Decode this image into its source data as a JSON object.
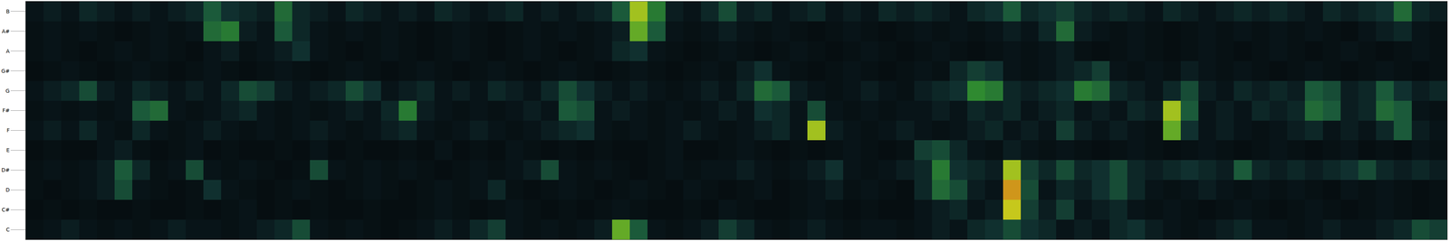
{
  "chart_data": {
    "type": "heatmap",
    "categories": [
      "C",
      "C#",
      "D",
      "D#",
      "E",
      "F",
      "F#",
      "G",
      "G#",
      "A",
      "A#",
      "B"
    ],
    "tick_labels": "y",
    "zlim": [
      0,
      1
    ],
    "cells": [
      [
        0.15,
        0.2,
        0.25,
        0.2,
        0.15,
        0.2,
        0.15,
        0.2,
        0.25,
        0.2,
        0.2,
        0.15,
        0.2,
        0.25,
        0.3,
        0.45,
        0.2,
        0.15,
        0.2,
        0.15,
        0.1,
        0.15,
        0.2,
        0.25,
        0.2,
        0.3,
        0.4,
        0.2,
        0.15,
        0.2,
        0.15,
        0.2,
        0.25,
        0.75,
        0.5,
        0.2,
        0.15,
        0.2,
        0.25,
        0.4,
        0.3,
        0.2,
        0.15,
        0.2,
        0.25,
        0.2,
        0.15,
        0.2,
        0.2,
        0.15,
        0.2,
        0.25,
        0.2,
        0.3,
        0.35,
        0.45,
        0.35,
        0.3,
        0.2,
        0.25,
        0.2,
        0.3,
        0.35,
        0.25,
        0.2,
        0.15,
        0.2,
        0.25,
        0.3,
        0.2,
        0.2,
        0.15,
        0.2,
        0.25,
        0.2,
        0.2,
        0.25,
        0.3,
        0.45,
        0.4
      ],
      [
        0.1,
        0.15,
        0.1,
        0.15,
        0.1,
        0.1,
        0.15,
        0.1,
        0.1,
        0.15,
        0.1,
        0.15,
        0.2,
        0.1,
        0.15,
        0.1,
        0.15,
        0.1,
        0.1,
        0.15,
        0.1,
        0.1,
        0.15,
        0.2,
        0.15,
        0.1,
        0.15,
        0.2,
        0.15,
        0.1,
        0.15,
        0.1,
        0.15,
        0.2,
        0.15,
        0.1,
        0.1,
        0.15,
        0.1,
        0.2,
        0.15,
        0.1,
        0.1,
        0.15,
        0.2,
        0.15,
        0.1,
        0.15,
        0.1,
        0.1,
        0.2,
        0.25,
        0.3,
        0.2,
        0.25,
        0.9,
        0.4,
        0.25,
        0.4,
        0.2,
        0.25,
        0.3,
        0.2,
        0.15,
        0.2,
        0.15,
        0.1,
        0.15,
        0.2,
        0.15,
        0.1,
        0.15,
        0.2,
        0.15,
        0.1,
        0.15,
        0.2,
        0.15,
        0.1,
        0.15
      ],
      [
        0.15,
        0.1,
        0.15,
        0.2,
        0.25,
        0.45,
        0.2,
        0.15,
        0.1,
        0.15,
        0.35,
        0.2,
        0.15,
        0.1,
        0.15,
        0.2,
        0.15,
        0.1,
        0.15,
        0.2,
        0.15,
        0.1,
        0.15,
        0.2,
        0.15,
        0.2,
        0.3,
        0.15,
        0.1,
        0.15,
        0.2,
        0.15,
        0.1,
        0.15,
        0.2,
        0.15,
        0.1,
        0.2,
        0.15,
        0.1,
        0.15,
        0.2,
        0.1,
        0.15,
        0.2,
        0.25,
        0.15,
        0.2,
        0.15,
        0.1,
        0.3,
        0.55,
        0.45,
        0.25,
        0.2,
        0.95,
        0.45,
        0.2,
        0.3,
        0.25,
        0.35,
        0.45,
        0.3,
        0.2,
        0.15,
        0.2,
        0.25,
        0.2,
        0.15,
        0.2,
        0.15,
        0.2,
        0.15,
        0.1,
        0.2,
        0.15,
        0.2,
        0.15,
        0.1,
        0.15
      ],
      [
        0.15,
        0.2,
        0.15,
        0.2,
        0.25,
        0.5,
        0.3,
        0.15,
        0.2,
        0.45,
        0.2,
        0.15,
        0.2,
        0.15,
        0.1,
        0.15,
        0.45,
        0.2,
        0.15,
        0.2,
        0.15,
        0.2,
        0.15,
        0.1,
        0.15,
        0.2,
        0.15,
        0.2,
        0.25,
        0.45,
        0.2,
        0.15,
        0.2,
        0.15,
        0.1,
        0.15,
        0.2,
        0.15,
        0.2,
        0.2,
        0.25,
        0.2,
        0.15,
        0.2,
        0.25,
        0.35,
        0.2,
        0.15,
        0.2,
        0.25,
        0.3,
        0.6,
        0.35,
        0.3,
        0.25,
        0.85,
        0.4,
        0.3,
        0.45,
        0.3,
        0.35,
        0.45,
        0.3,
        0.25,
        0.3,
        0.35,
        0.3,
        0.25,
        0.5,
        0.3,
        0.25,
        0.3,
        0.25,
        0.3,
        0.35,
        0.45,
        0.3,
        0.25,
        0.3,
        0.25
      ],
      [
        0.1,
        0.15,
        0.1,
        0.1,
        0.2,
        0.25,
        0.15,
        0.1,
        0.15,
        0.2,
        0.1,
        0.15,
        0.1,
        0.1,
        0.15,
        0.1,
        0.2,
        0.1,
        0.15,
        0.1,
        0.1,
        0.15,
        0.1,
        0.2,
        0.1,
        0.15,
        0.1,
        0.2,
        0.15,
        0.1,
        0.15,
        0.1,
        0.15,
        0.1,
        0.1,
        0.15,
        0.2,
        0.1,
        0.1,
        0.15,
        0.2,
        0.15,
        0.1,
        0.15,
        0.1,
        0.15,
        0.2,
        0.15,
        0.1,
        0.15,
        0.4,
        0.45,
        0.3,
        0.2,
        0.15,
        0.25,
        0.2,
        0.15,
        0.2,
        0.15,
        0.1,
        0.15,
        0.2,
        0.15,
        0.1,
        0.15,
        0.2,
        0.15,
        0.1,
        0.15,
        0.2,
        0.15,
        0.1,
        0.15,
        0.2,
        0.1,
        0.15,
        0.1,
        0.2,
        0.15
      ],
      [
        0.2,
        0.25,
        0.2,
        0.3,
        0.2,
        0.15,
        0.3,
        0.2,
        0.15,
        0.2,
        0.25,
        0.2,
        0.15,
        0.2,
        0.15,
        0.2,
        0.25,
        0.2,
        0.15,
        0.2,
        0.25,
        0.3,
        0.2,
        0.15,
        0.2,
        0.25,
        0.2,
        0.15,
        0.2,
        0.25,
        0.3,
        0.35,
        0.2,
        0.15,
        0.2,
        0.15,
        0.2,
        0.25,
        0.2,
        0.15,
        0.2,
        0.25,
        0.3,
        0.2,
        0.85,
        0.25,
        0.2,
        0.15,
        0.2,
        0.25,
        0.2,
        0.15,
        0.2,
        0.25,
        0.3,
        0.2,
        0.25,
        0.2,
        0.4,
        0.25,
        0.2,
        0.25,
        0.2,
        0.15,
        0.75,
        0.35,
        0.2,
        0.25,
        0.2,
        0.15,
        0.2,
        0.25,
        0.3,
        0.2,
        0.25,
        0.2,
        0.3,
        0.5,
        0.25,
        0.2
      ],
      [
        0.15,
        0.2,
        0.15,
        0.2,
        0.15,
        0.2,
        0.5,
        0.55,
        0.2,
        0.15,
        0.2,
        0.25,
        0.3,
        0.2,
        0.15,
        0.2,
        0.15,
        0.2,
        0.25,
        0.2,
        0.3,
        0.6,
        0.25,
        0.2,
        0.15,
        0.2,
        0.15,
        0.2,
        0.25,
        0.2,
        0.5,
        0.45,
        0.2,
        0.25,
        0.2,
        0.15,
        0.2,
        0.15,
        0.2,
        0.25,
        0.2,
        0.35,
        0.3,
        0.2,
        0.45,
        0.2,
        0.15,
        0.2,
        0.15,
        0.2,
        0.2,
        0.25,
        0.2,
        0.3,
        0.25,
        0.3,
        0.2,
        0.25,
        0.3,
        0.2,
        0.25,
        0.2,
        0.3,
        0.25,
        0.85,
        0.5,
        0.2,
        0.25,
        0.2,
        0.3,
        0.25,
        0.3,
        0.55,
        0.5,
        0.25,
        0.3,
        0.55,
        0.5,
        0.2,
        0.15
      ],
      [
        0.2,
        0.25,
        0.3,
        0.45,
        0.25,
        0.2,
        0.3,
        0.25,
        0.2,
        0.25,
        0.2,
        0.3,
        0.45,
        0.4,
        0.25,
        0.2,
        0.25,
        0.3,
        0.45,
        0.35,
        0.2,
        0.25,
        0.3,
        0.2,
        0.25,
        0.2,
        0.3,
        0.25,
        0.2,
        0.3,
        0.45,
        0.35,
        0.25,
        0.2,
        0.25,
        0.2,
        0.15,
        0.2,
        0.25,
        0.2,
        0.3,
        0.55,
        0.5,
        0.25,
        0.2,
        0.15,
        0.2,
        0.25,
        0.2,
        0.15,
        0.25,
        0.3,
        0.35,
        0.65,
        0.6,
        0.3,
        0.25,
        0.3,
        0.35,
        0.6,
        0.55,
        0.3,
        0.25,
        0.2,
        0.3,
        0.45,
        0.25,
        0.2,
        0.3,
        0.25,
        0.3,
        0.25,
        0.5,
        0.45,
        0.25,
        0.3,
        0.5,
        0.35,
        0.25,
        0.3
      ],
      [
        0.1,
        0.15,
        0.2,
        0.15,
        0.1,
        0.15,
        0.2,
        0.15,
        0.1,
        0.15,
        0.2,
        0.15,
        0.1,
        0.15,
        0.2,
        0.15,
        0.1,
        0.15,
        0.2,
        0.15,
        0.1,
        0.15,
        0.2,
        0.15,
        0.1,
        0.15,
        0.2,
        0.15,
        0.1,
        0.15,
        0.2,
        0.15,
        0.1,
        0.15,
        0.2,
        0.15,
        0.1,
        0.15,
        0.2,
        0.15,
        0.25,
        0.35,
        0.2,
        0.15,
        0.1,
        0.15,
        0.2,
        0.15,
        0.1,
        0.15,
        0.2,
        0.15,
        0.3,
        0.4,
        0.35,
        0.2,
        0.15,
        0.2,
        0.25,
        0.3,
        0.4,
        0.2,
        0.15,
        0.2,
        0.15,
        0.25,
        0.2,
        0.15,
        0.2,
        0.15,
        0.1,
        0.15,
        0.2,
        0.15,
        0.1,
        0.15,
        0.2,
        0.15,
        0.1,
        0.15
      ],
      [
        0.15,
        0.2,
        0.15,
        0.1,
        0.15,
        0.2,
        0.15,
        0.2,
        0.15,
        0.1,
        0.2,
        0.25,
        0.15,
        0.2,
        0.25,
        0.35,
        0.2,
        0.15,
        0.1,
        0.15,
        0.2,
        0.15,
        0.1,
        0.15,
        0.2,
        0.15,
        0.1,
        0.15,
        0.2,
        0.15,
        0.1,
        0.15,
        0.2,
        0.3,
        0.35,
        0.2,
        0.15,
        0.1,
        0.15,
        0.2,
        0.15,
        0.1,
        0.15,
        0.2,
        0.15,
        0.1,
        0.15,
        0.2,
        0.15,
        0.1,
        0.15,
        0.2,
        0.15,
        0.1,
        0.15,
        0.2,
        0.15,
        0.2,
        0.25,
        0.15,
        0.1,
        0.15,
        0.2,
        0.15,
        0.1,
        0.15,
        0.2,
        0.15,
        0.1,
        0.15,
        0.2,
        0.15,
        0.1,
        0.15,
        0.2,
        0.15,
        0.1,
        0.15,
        0.2,
        0.15
      ],
      [
        0.15,
        0.2,
        0.15,
        0.2,
        0.15,
        0.1,
        0.15,
        0.2,
        0.15,
        0.2,
        0.55,
        0.6,
        0.25,
        0.2,
        0.5,
        0.3,
        0.2,
        0.15,
        0.2,
        0.15,
        0.2,
        0.15,
        0.1,
        0.15,
        0.2,
        0.15,
        0.1,
        0.15,
        0.2,
        0.15,
        0.2,
        0.15,
        0.2,
        0.25,
        0.75,
        0.5,
        0.2,
        0.15,
        0.2,
        0.25,
        0.2,
        0.15,
        0.2,
        0.15,
        0.1,
        0.15,
        0.2,
        0.15,
        0.1,
        0.15,
        0.2,
        0.15,
        0.2,
        0.15,
        0.2,
        0.25,
        0.2,
        0.3,
        0.55,
        0.25,
        0.2,
        0.15,
        0.2,
        0.15,
        0.1,
        0.15,
        0.2,
        0.15,
        0.2,
        0.15,
        0.2,
        0.15,
        0.2,
        0.15,
        0.1,
        0.2,
        0.25,
        0.3,
        0.2,
        0.15
      ],
      [
        0.2,
        0.25,
        0.2,
        0.3,
        0.25,
        0.2,
        0.25,
        0.2,
        0.25,
        0.3,
        0.5,
        0.35,
        0.3,
        0.25,
        0.55,
        0.3,
        0.25,
        0.2,
        0.3,
        0.25,
        0.2,
        0.25,
        0.2,
        0.3,
        0.25,
        0.2,
        0.25,
        0.3,
        0.2,
        0.25,
        0.2,
        0.25,
        0.3,
        0.5,
        0.85,
        0.6,
        0.25,
        0.2,
        0.3,
        0.45,
        0.25,
        0.3,
        0.2,
        0.25,
        0.3,
        0.2,
        0.25,
        0.2,
        0.3,
        0.25,
        0.3,
        0.25,
        0.2,
        0.3,
        0.35,
        0.5,
        0.3,
        0.35,
        0.4,
        0.3,
        0.25,
        0.3,
        0.25,
        0.2,
        0.3,
        0.25,
        0.2,
        0.25,
        0.3,
        0.25,
        0.3,
        0.25,
        0.2,
        0.3,
        0.25,
        0.3,
        0.35,
        0.55,
        0.3,
        0.25
      ]
    ]
  }
}
